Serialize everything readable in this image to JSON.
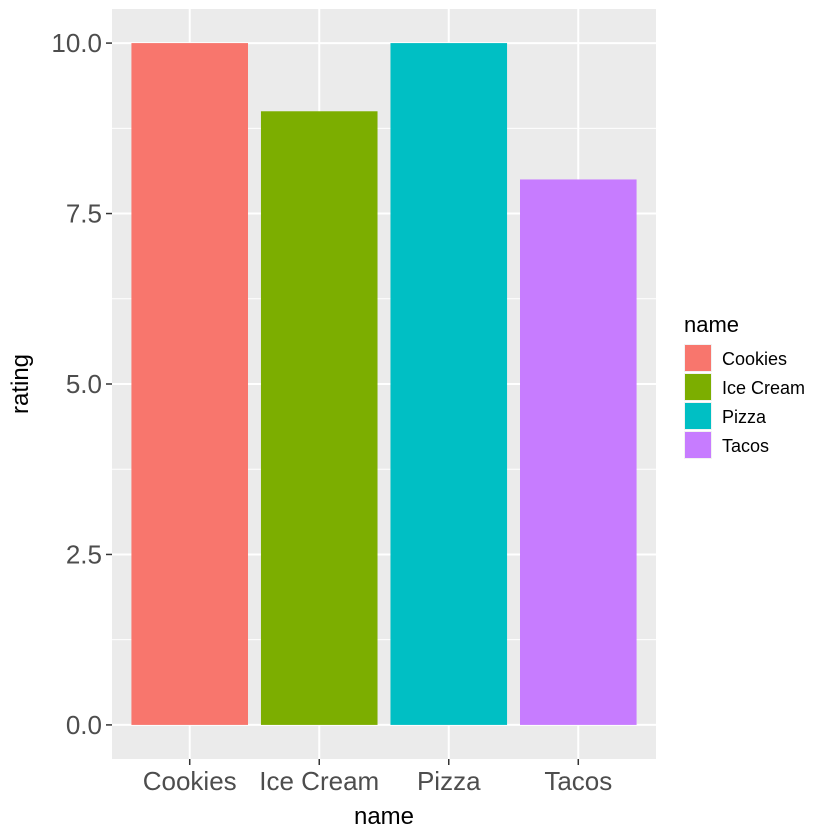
{
  "chart_data": {
    "type": "bar",
    "categories": [
      "Cookies",
      "Ice Cream",
      "Pizza",
      "Tacos"
    ],
    "values": [
      10,
      9,
      10,
      8
    ],
    "colors": [
      "#F8766D",
      "#7CAE00",
      "#00BFC4",
      "#C77CFF"
    ],
    "xlabel": "name",
    "ylabel": "rating",
    "ylim": [
      -0.5,
      10.5
    ],
    "y_ticks": [
      "0.0",
      "2.5",
      "5.0",
      "7.5",
      "10.0"
    ],
    "y_tick_values": [
      0,
      2.5,
      5,
      7.5,
      10
    ],
    "grid": true,
    "panel_background": "#EBEBEB",
    "legend": {
      "title": "name",
      "placement": "right",
      "entries": [
        "Cookies",
        "Ice Cream",
        "Pizza",
        "Tacos"
      ]
    }
  }
}
